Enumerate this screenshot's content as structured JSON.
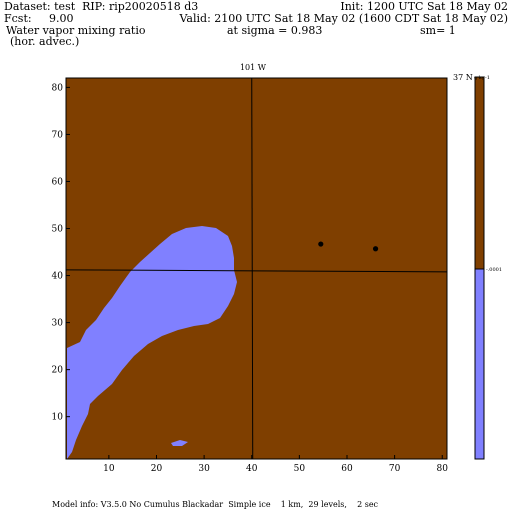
{
  "header": {
    "dataset": "Dataset: test  RIP: rip20020518 d3",
    "init": "Init: 1200 UTC Sat 18 May 02",
    "fcst": "Fcst:     9.00",
    "valid": "Valid: 2100 UTC Sat 18 May 02 (1600 CDT Sat 18 May 02)",
    "field_line1": "Water vapor mixing ratio",
    "field_line2": "(hor. advec.)",
    "sigma": "at sigma = 0.983",
    "sm": "sm= 1"
  },
  "footer": {
    "model_info": "Model info: V3.5.0 No Cumulus Blackadar  Simple ice    1 km,  29 levels,    2 sec"
  },
  "map": {
    "top_label": "101 W",
    "corner_label": "37 N",
    "x_ticks": [
      "10",
      "20",
      "30",
      "40",
      "50",
      "60",
      "70",
      "80"
    ],
    "y_ticks": [
      "10",
      "20",
      "30",
      "40",
      "50",
      "60",
      "70",
      "80"
    ],
    "xlim": [
      1,
      81
    ],
    "ylim": [
      1,
      82
    ],
    "meridian_x": 40,
    "parallel_y": 41,
    "markers": [
      {
        "x": 54.5,
        "y": 46.7
      },
      {
        "x": 66,
        "y": 45.7
      }
    ]
  },
  "colorbar": {
    "units": "g kg-1",
    "label": "-.0001",
    "value": -0.0001,
    "colors": {
      "above": "#7f3f00",
      "below": "#8080ff"
    }
  },
  "colors": {
    "field_brown": "#7f3f00",
    "field_blue": "#8080ff"
  }
}
